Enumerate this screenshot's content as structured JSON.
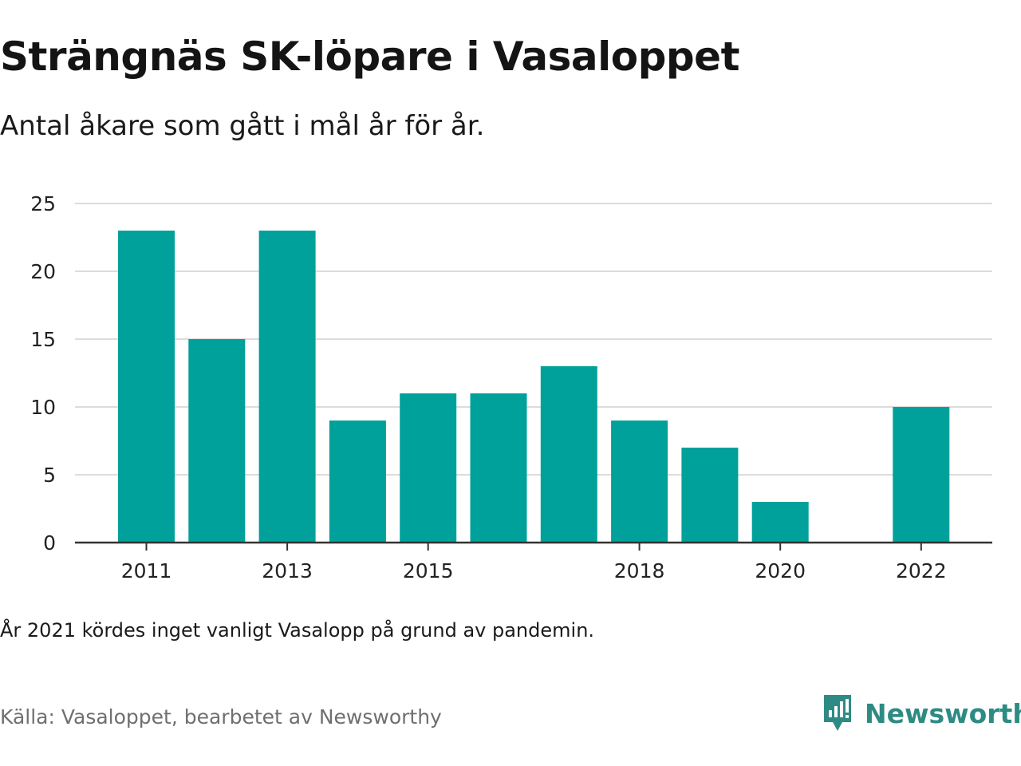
{
  "header": {
    "title": "Strängnäs SK-löpare i Vasaloppet",
    "subtitle": "Antal åkare som gått i mål år för år."
  },
  "footer": {
    "note": "År 2021 kördes inget vanligt Vasalopp på grund av pandemin.",
    "source": "Källa: Vasaloppet, bearbetet av Newsworthy",
    "brand": "Newsworthy",
    "brand_icon": "newsworthy-logo-icon"
  },
  "colors": {
    "bar": "#00a19a",
    "grid": "#dcdcdc",
    "axis": "#333333",
    "brand": "#2e8b84"
  },
  "chart_data": {
    "type": "bar",
    "title": "Strängnäs SK-löpare i Vasaloppet",
    "subtitle": "Antal åkare som gått i mål år för år.",
    "xlabel": "",
    "ylabel": "",
    "x": [
      2011,
      2012,
      2013,
      2014,
      2015,
      2016,
      2017,
      2018,
      2019,
      2020,
      2021,
      2022
    ],
    "values": [
      23,
      15,
      23,
      9,
      11,
      11,
      13,
      9,
      7,
      3,
      null,
      10
    ],
    "x_ticks": [
      2011,
      2013,
      2015,
      2018,
      2020,
      2022
    ],
    "y_ticks": [
      0,
      5,
      10,
      15,
      20,
      25
    ],
    "ylim": [
      0,
      25
    ],
    "grid": true
  }
}
